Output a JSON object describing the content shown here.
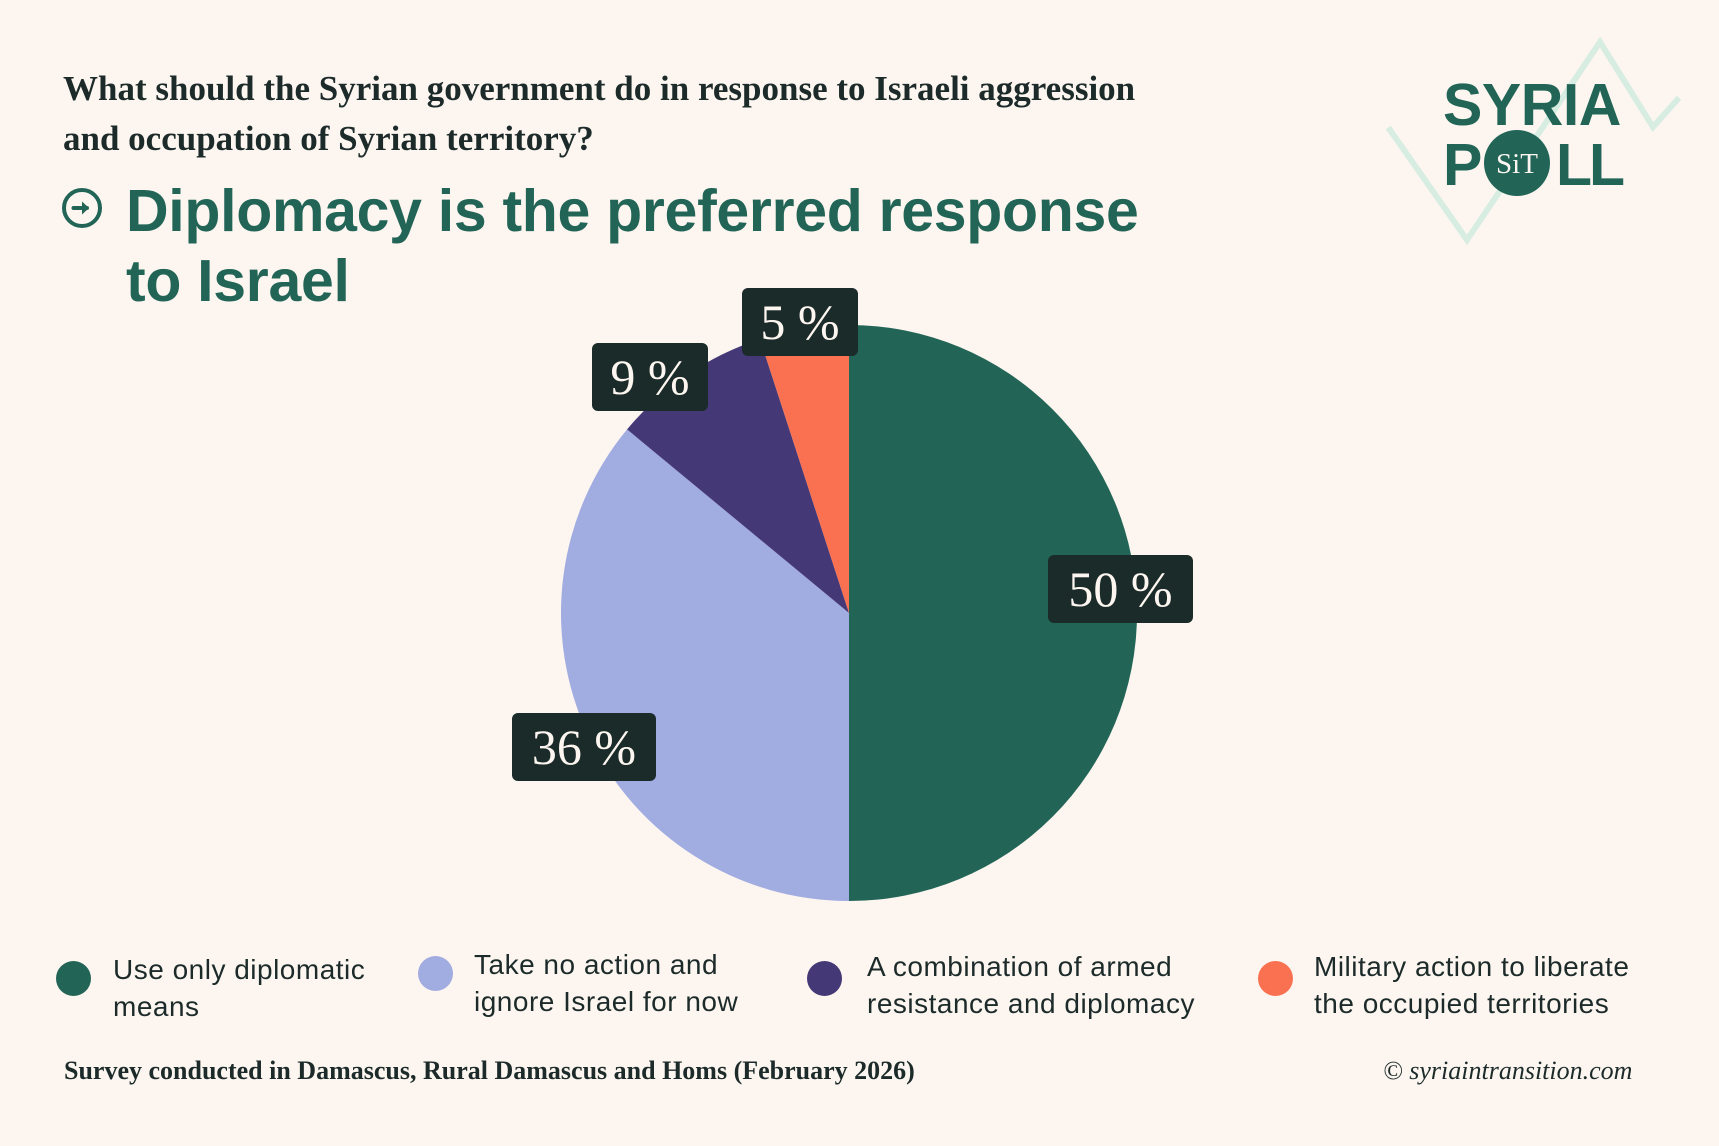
{
  "question": {
    "line1": "What should the Syrian government do in response to Israeli aggression",
    "line2": "and occupation of Syrian territory?"
  },
  "headline": {
    "icon": "arrow-right-circle-icon",
    "line1": "Diplomacy is the preferred response",
    "line2": "to Israel"
  },
  "logo": {
    "line1": "SYRIA",
    "p": "P",
    "badge": "SiT",
    "ll": "LL"
  },
  "colors": {
    "background": "#fdf6f0",
    "accent": "#226557",
    "label_box": "#1b2b2a",
    "zigzag": "#d7ede2"
  },
  "chart_data": {
    "type": "pie",
    "title": "Diplomacy is the preferred response to Israel",
    "subtitle": "What should the Syrian government do in response to Israeli aggression and occupation of Syrian territory?",
    "start": "top",
    "direction": "clockwise",
    "legend_position": "bottom",
    "slices": [
      {
        "name": "Use only diplomatic means",
        "value": 50,
        "label": "50 %",
        "color": "#226557",
        "legend_lines": [
          "Use only diplomatic",
          "means"
        ]
      },
      {
        "name": "Take no action and ignore Israel for now",
        "value": 36,
        "label": "36 %",
        "color": "#a1ace1",
        "legend_lines": [
          "Take no action and",
          "ignore Israel for now"
        ]
      },
      {
        "name": "A combination of armed resistance and diplomacy",
        "value": 9,
        "label": "9 %",
        "color": "#453877",
        "legend_lines": [
          "A combination of armed",
          "resistance and diplomacy"
        ]
      },
      {
        "name": "Military action to liberate the occupied territories",
        "value": 5,
        "label": "5 %",
        "color": "#f97150",
        "legend_lines": [
          "Military action to liberate",
          "the occupied territories"
        ]
      }
    ]
  },
  "footer": {
    "note": "Survey conducted in Damascus, Rural Damascus and Homs (February 2026)",
    "copyright": "© syriaintransition.com"
  }
}
